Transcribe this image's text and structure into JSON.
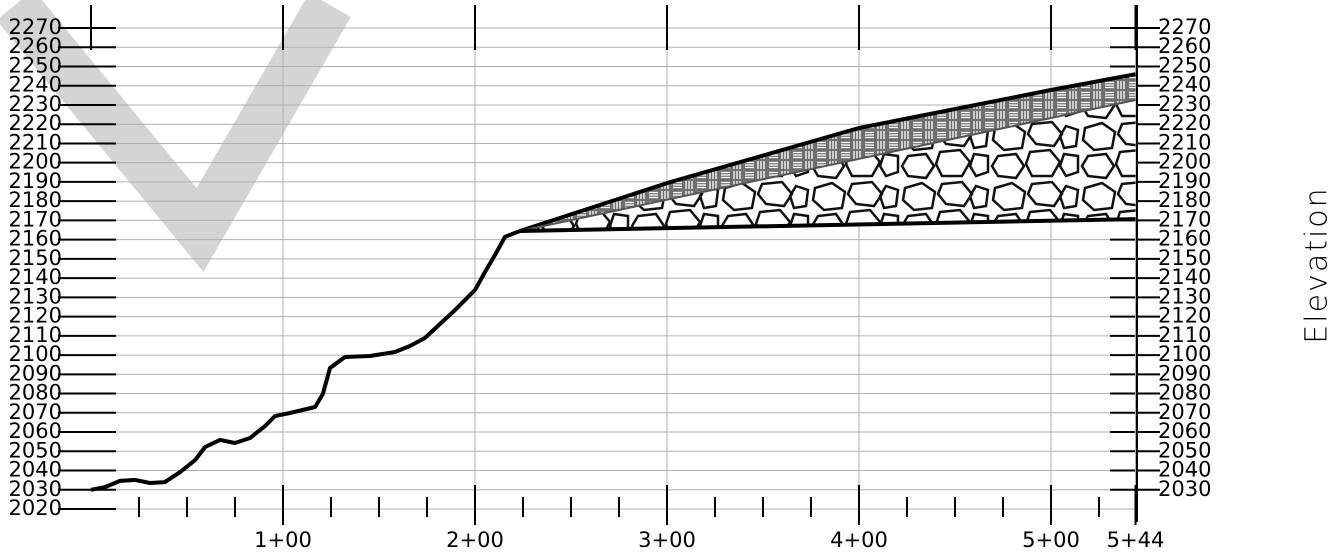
{
  "chart_data": {
    "type": "line",
    "y_label": "Elevation",
    "xlim": [
      0,
      544
    ],
    "ylim": [
      2020,
      2270
    ],
    "xticks": [
      {
        "value": 100,
        "label": "1+00"
      },
      {
        "value": 200,
        "label": "2+00"
      },
      {
        "value": 300,
        "label": "3+00"
      },
      {
        "value": 400,
        "label": "4+00"
      },
      {
        "value": 500,
        "label": "5+00"
      },
      {
        "value": 544,
        "label": "5+44"
      }
    ],
    "xminorticks": [
      25,
      50,
      75,
      125,
      150,
      175,
      225,
      250,
      275,
      325,
      350,
      375,
      425,
      450,
      475,
      525
    ],
    "yticks": [
      2020,
      2030,
      2040,
      2050,
      2060,
      2070,
      2080,
      2090,
      2100,
      2110,
      2120,
      2130,
      2140,
      2150,
      2160,
      2170,
      2180,
      2190,
      2200,
      2210,
      2220,
      2230,
      2240,
      2250,
      2260,
      2270
    ],
    "y2lim": [
      2020,
      2270
    ],
    "y2ticks": [
      2030,
      2040,
      2050,
      2060,
      2070,
      2080,
      2090,
      2100,
      2110,
      2120,
      2130,
      2140,
      2150,
      2160,
      2170,
      2180,
      2190,
      2200,
      2210,
      2220,
      2230,
      2240,
      2250,
      2260,
      2270
    ],
    "grid": true,
    "series": [
      {
        "color": "#000000",
        "x": [
          0,
          7.3,
          15.1,
          22.9,
          30.7,
          38.5,
          46.4,
          54.2,
          59.4,
          67.2,
          75,
          82.8,
          90.6,
          95.8,
          103.6,
          116.7,
          120.8,
          124.5,
          132.3,
          145.3,
          158.3,
          166.1,
          173.9,
          181.8,
          189.6,
          194.8,
          200,
          205.2,
          210.4,
          215.6,
          223.4
        ],
        "values": [
          2030,
          2031.4,
          2034.6,
          2035.1,
          2033.5,
          2034,
          2039.2,
          2045.4,
          2052.2,
          2055.9,
          2054.3,
          2056.9,
          2063.1,
          2068.3,
          2069.9,
          2073,
          2079.8,
          2093.3,
          2099,
          2099.5,
          2101.6,
          2104.7,
          2108.9,
          2116.2,
          2123.4,
          2128.6,
          2133.8,
          2143.2,
          2152,
          2161.4,
          2164.5
        ]
      },
      {
        "color": "#000000",
        "x": [
          223.4,
          300,
          400,
          500,
          544
        ],
        "values": [
          2164.5,
          2189.4,
          2218,
          2237.8,
          2246
        ]
      },
      {
        "color": "#555555",
        "x": [
          223.4,
          544
        ],
        "values": [
          2164.5,
          2232.6
        ]
      },
      {
        "color": "#000000",
        "x": [
          223.4,
          544
        ],
        "values": [
          2164.5,
          2170.7
        ]
      }
    ]
  }
}
